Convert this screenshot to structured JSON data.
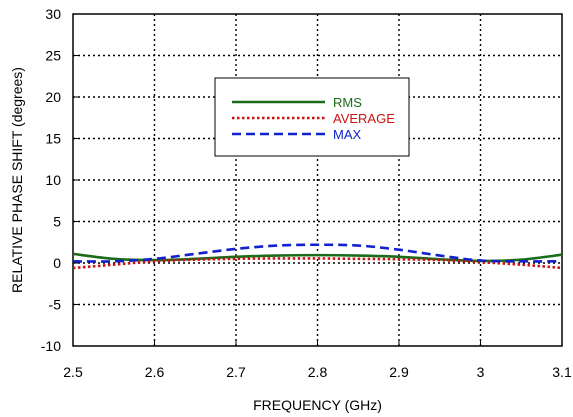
{
  "chart_data": {
    "type": "line",
    "xlabel": "FREQUENCY (GHz)",
    "ylabel": "RELATIVE PHASE SHIFT (degrees)",
    "xlim": [
      2.5,
      3.1
    ],
    "ylim": [
      -10,
      30
    ],
    "x_ticks": [
      "2.5",
      "2.6",
      "2.7",
      "2.8",
      "2.9",
      "3",
      "3.1"
    ],
    "y_ticks": [
      "-10",
      "-5",
      "0",
      "5",
      "10",
      "15",
      "20",
      "25",
      "30"
    ],
    "grid": true,
    "grid_style": "dotted",
    "legend_position": "upper-center",
    "x": [
      2.5,
      2.55,
      2.6,
      2.65,
      2.7,
      2.75,
      2.8,
      2.85,
      2.9,
      2.95,
      3.0,
      3.05,
      3.1
    ],
    "series": [
      {
        "name": "RMS",
        "color": "#1a6b1a",
        "dash": "solid",
        "values": [
          1.1,
          0.5,
          0.35,
          0.5,
          0.75,
          0.9,
          0.95,
          0.9,
          0.75,
          0.45,
          0.25,
          0.4,
          1.0
        ]
      },
      {
        "name": "AVERAGE",
        "color": "#cc1111",
        "dash": "dotted",
        "values": [
          -0.6,
          -0.2,
          0.2,
          0.4,
          0.5,
          0.55,
          0.55,
          0.5,
          0.45,
          0.35,
          0.1,
          -0.2,
          -0.6
        ]
      },
      {
        "name": "MAX",
        "color": "#1122cc",
        "dash": "dashed",
        "values": [
          0.2,
          0.2,
          0.5,
          1.1,
          1.7,
          2.1,
          2.2,
          2.1,
          1.6,
          0.9,
          0.3,
          0.2,
          0.2
        ]
      }
    ]
  }
}
